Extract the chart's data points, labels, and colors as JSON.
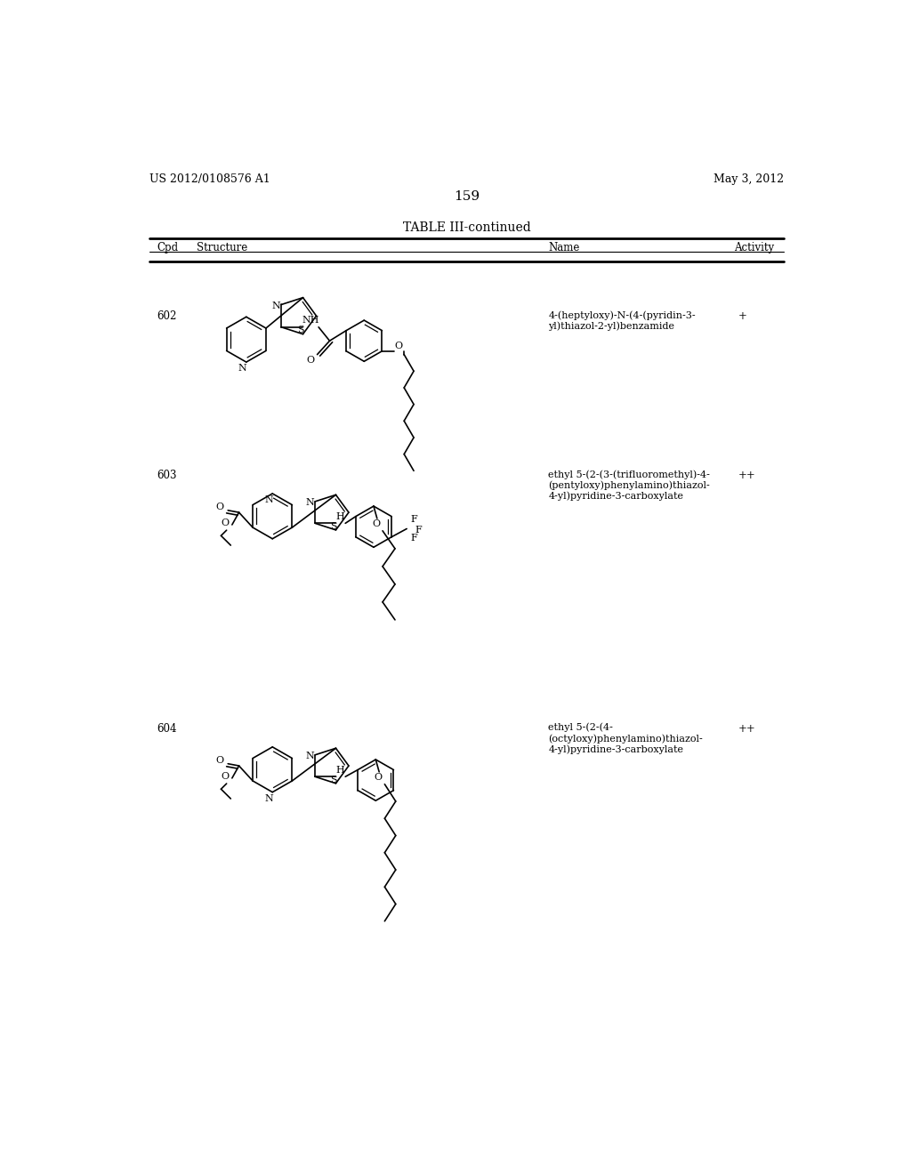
{
  "page_number": "159",
  "header_left": "US 2012/0108576 A1",
  "header_right": "May 3, 2012",
  "table_title": "TABLE III-continued",
  "col_headers": [
    "Cpd",
    "Structure",
    "Name",
    "Activity"
  ],
  "compounds": [
    {
      "id": "602",
      "name": "4-(heptyloxy)-N-(4-(pyridin-3-\nyl)thiazol-2-yl)benzamide",
      "activity": "+"
    },
    {
      "id": "603",
      "name": "ethyl 5-(2-(3-(trifluoromethyl)-4-\n(pentyloxy)phenylamino)thiazol-\n4-yl)pyridine-3-carboxylate",
      "activity": "++"
    },
    {
      "id": "604",
      "name": "ethyl 5-(2-(4-\n(octyloxy)phenylamino)thiazol-\n4-yl)pyridine-3-carboxylate",
      "activity": "++"
    }
  ],
  "background_color": "#ffffff",
  "text_color": "#000000",
  "line_color": "#000000"
}
